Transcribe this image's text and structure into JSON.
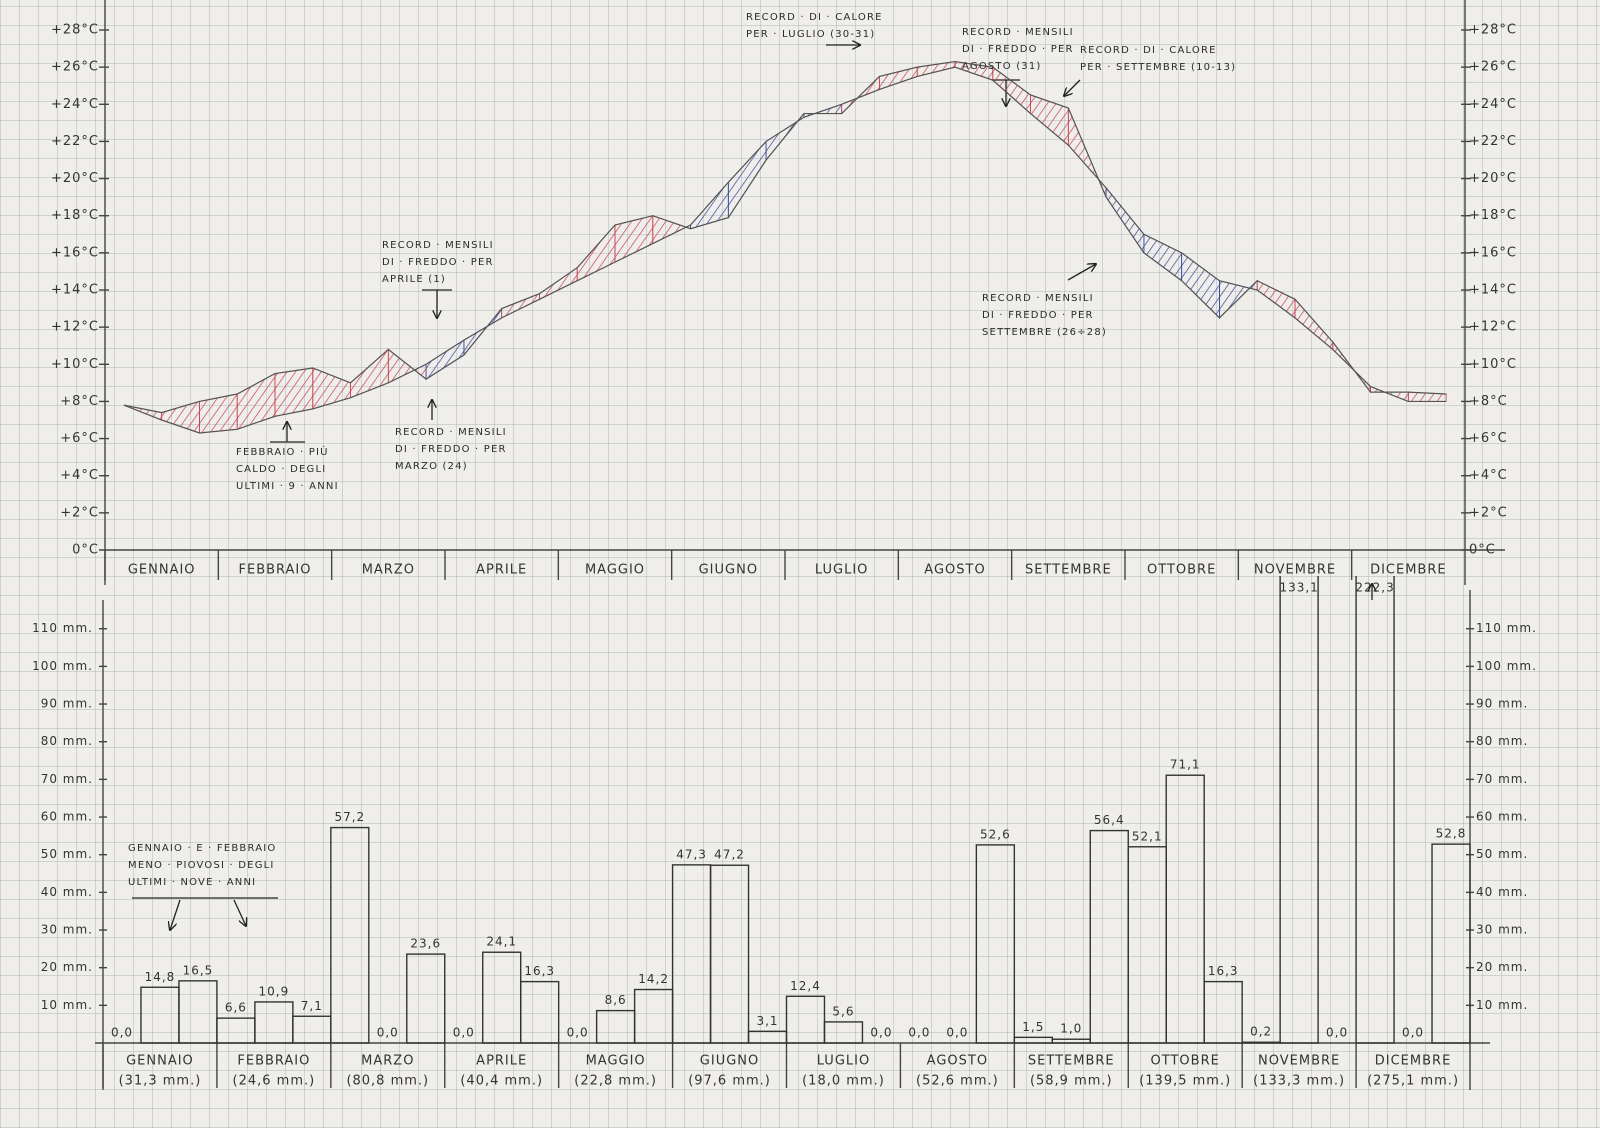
{
  "chart_data": [
    {
      "type": "line",
      "months": [
        "GENNAIO",
        "FEBBRAIO",
        "MARZO",
        "APRILE",
        "MAGGIO",
        "GIUGNO",
        "LUGLIO",
        "AGOSTO",
        "SETTEMBRE",
        "OTTOBRE",
        "NOVEMBRE",
        "DICEMBRE"
      ],
      "series": [
        {
          "color": "#555555",
          "values": [
            7.8,
            7.0,
            6.3,
            6.5,
            7.2,
            7.6,
            8.2,
            9.0,
            10.0,
            11.3,
            12.5,
            13.5,
            14.5,
            15.5,
            16.5,
            17.5,
            19.8,
            22.0,
            23.3,
            24.0,
            24.8,
            25.5,
            26.0,
            25.3,
            23.5,
            21.8,
            19.5,
            17.0,
            16.0,
            14.5,
            14.0,
            12.5,
            10.8,
            8.8,
            8.0,
            8.0
          ]
        },
        {
          "color": "#555555",
          "values": [
            7.8,
            7.4,
            8.0,
            8.4,
            9.5,
            9.8,
            9.0,
            10.8,
            9.2,
            10.5,
            13.0,
            13.8,
            15.2,
            17.5,
            18.0,
            17.3,
            17.9,
            21.0,
            23.5,
            23.5,
            25.5,
            26.0,
            26.3,
            26.0,
            24.5,
            23.8,
            19.0,
            16.0,
            14.5,
            12.5,
            14.5,
            13.5,
            11.2,
            8.5,
            8.5,
            8.4
          ]
        }
      ],
      "hatch_colors": [
        "#c9414f",
        "#34479a"
      ],
      "ylim": [
        0,
        28
      ],
      "yticks": [
        {
          "value": 0,
          "label": "0°C"
        },
        {
          "value": 2,
          "label": "+2°C"
        },
        {
          "value": 4,
          "label": "+4°C"
        },
        {
          "value": 6,
          "label": "+6°C"
        },
        {
          "value": 8,
          "label": "+8°C"
        },
        {
          "value": 10,
          "label": "+10°C"
        },
        {
          "value": 12,
          "label": "+12°C"
        },
        {
          "value": 14,
          "label": "+14°C"
        },
        {
          "value": 16,
          "label": "+16°C"
        },
        {
          "value": 18,
          "label": "+18°C"
        },
        {
          "value": 20,
          "label": "+20°C"
        },
        {
          "value": 22,
          "label": "+22°C"
        },
        {
          "value": 24,
          "label": "+24°C"
        },
        {
          "value": 26,
          "label": "+26°C"
        },
        {
          "value": 28,
          "label": "+28°C"
        }
      ],
      "annotations": [
        [
          "FEBBRAIO · PIÙ",
          "CALDO · DEGLI",
          "ULTIMI · 9 · ANNI"
        ],
        [
          "RECORD · MENSILI",
          "DI · FREDDO · PER",
          "APRILE (1)"
        ],
        [
          "RECORD · MENSILI",
          "DI · FREDDO · PER",
          "MARZO (24)"
        ],
        [
          "RECORD · DI · CALORE",
          "PER · LUGLIO (30-31)"
        ],
        [
          "RECORD · MENSILI",
          "DI · FREDDO · PER",
          "AGOSTO (31)"
        ],
        [
          "RECORD · DI · CALORE",
          "PER · SETTEMBRE (10-13)"
        ],
        [
          "RECORD · MENSILI",
          "DI · FREDDO · PER",
          "SETTEMBRE (26÷28)"
        ]
      ]
    },
    {
      "type": "bar",
      "months": [
        "GENNAIO",
        "FEBBRAIO",
        "MARZO",
        "APRILE",
        "MAGGIO",
        "GIUGNO",
        "LUGLIO",
        "AGOSTO",
        "SETTEMBRE",
        "OTTOBRE",
        "NOVEMBRE",
        "DICEMBRE"
      ],
      "month_totals": [
        "(31,3 mm.)",
        "(24,6 mm.)",
        "(80,8 mm.)",
        "(40,4 mm.)",
        "(22,8 mm.)",
        "(97,6 mm.)",
        "(18,0 mm.)",
        "(52,6 mm.)",
        "(58,9 mm.)",
        "(139,5 mm.)",
        "(133,3 mm.)",
        "(275,1 mm.)"
      ],
      "values": [
        0,
        14.8,
        16.5,
        6.6,
        10.9,
        7.1,
        57.2,
        0,
        23.6,
        0,
        24.1,
        16.3,
        0,
        8.6,
        14.2,
        47.3,
        47.2,
        3.1,
        12.4,
        5.6,
        0,
        0,
        0,
        52.6,
        1.5,
        1.0,
        56.4,
        52.1,
        71.1,
        16.3,
        0.2,
        133.1,
        0,
        222.3,
        0,
        52.8
      ],
      "value_labels": [
        "0,0",
        "14,8",
        "16,5",
        "6,6",
        "10,9",
        "7,1",
        "57,2",
        "0,0",
        "23,6",
        "0,0",
        "24,1",
        "16,3",
        "0,0",
        "8,6",
        "14,2",
        "47,3",
        "47,2",
        "3,1",
        "12,4",
        "5,6",
        "0,0",
        "0,0",
        "0,0",
        "52,6",
        "1,5",
        "1,0",
        "56,4",
        "52,1",
        "71,1",
        "16,3",
        "0,2",
        "133,1",
        "0,0",
        "222,3",
        "0,0",
        "52,8"
      ],
      "color": "#333333",
      "ylim": [
        0,
        124
      ],
      "yticks": [
        {
          "value": 10,
          "label": "10 mm."
        },
        {
          "value": 20,
          "label": "20 mm."
        },
        {
          "value": 30,
          "label": "30 mm."
        },
        {
          "value": 40,
          "label": "40 mm."
        },
        {
          "value": 50,
          "label": "50 mm."
        },
        {
          "value": 60,
          "label": "60 mm."
        },
        {
          "value": 70,
          "label": "70 mm."
        },
        {
          "value": 80,
          "label": "80 mm."
        },
        {
          "value": 90,
          "label": "90 mm."
        },
        {
          "value": 100,
          "label": "100 mm."
        },
        {
          "value": 110,
          "label": "110 mm."
        }
      ],
      "annotations": [
        [
          "GENNAIO · E · FEBBRAIO",
          "MENO · PIOVOSI · DEGLI",
          "ULTIMI · NOVE · ANNI"
        ]
      ]
    }
  ]
}
